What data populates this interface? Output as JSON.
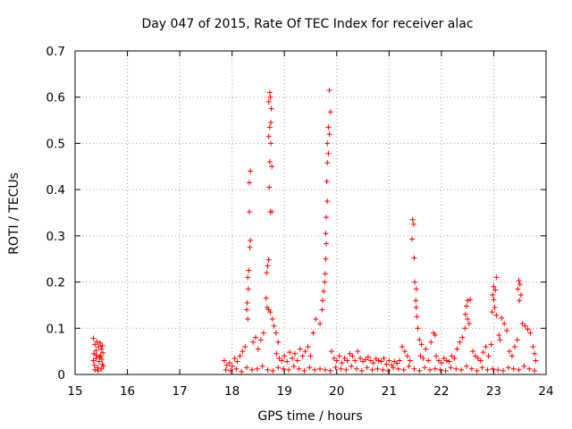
{
  "chart_data": {
    "type": "scatter",
    "title": "Day 047 of 2015, Rate Of TEC Index for receiver alac",
    "xlabel": "GPS time / hours",
    "ylabel": "ROTI / TECUs",
    "xlim": [
      15,
      24
    ],
    "ylim": [
      0,
      0.7
    ],
    "x_ticks": [
      "15",
      "16",
      "17",
      "18",
      "19",
      "20",
      "21",
      "22",
      "23",
      "24"
    ],
    "y_ticks": [
      "0",
      "0.1",
      "0.2",
      "0.3",
      "0.4",
      "0.5",
      "0.6",
      "0.7"
    ],
    "grid": true,
    "marker": "+",
    "color": "#ff0000",
    "series": [
      {
        "name": "ROTI",
        "points": [
          [
            15.35,
            0.078
          ],
          [
            15.38,
            0.065
          ],
          [
            15.4,
            0.052
          ],
          [
            15.42,
            0.071
          ],
          [
            15.45,
            0.06
          ],
          [
            15.48,
            0.068
          ],
          [
            15.5,
            0.055
          ],
          [
            15.52,
            0.062
          ],
          [
            15.35,
            0.03
          ],
          [
            15.37,
            0.02
          ],
          [
            15.4,
            0.035
          ],
          [
            15.43,
            0.015
          ],
          [
            15.46,
            0.028
          ],
          [
            15.49,
            0.04
          ],
          [
            15.52,
            0.022
          ],
          [
            15.54,
            0.018
          ],
          [
            15.36,
            0.045
          ],
          [
            15.41,
            0.042
          ],
          [
            15.47,
            0.038
          ],
          [
            15.51,
            0.033
          ],
          [
            15.38,
            0.01
          ],
          [
            15.44,
            0.008
          ],
          [
            15.5,
            0.012
          ],
          [
            15.53,
            0.047
          ],
          [
            18.35,
            0.44
          ],
          [
            18.33,
            0.415
          ],
          [
            18.33,
            0.352
          ],
          [
            18.35,
            0.29
          ],
          [
            18.34,
            0.275
          ],
          [
            18.32,
            0.225
          ],
          [
            18.3,
            0.21
          ],
          [
            18.31,
            0.185
          ],
          [
            18.29,
            0.155
          ],
          [
            18.28,
            0.14
          ],
          [
            18.3,
            0.12
          ],
          [
            18.72,
            0.61
          ],
          [
            18.73,
            0.6
          ],
          [
            18.7,
            0.59
          ],
          [
            18.75,
            0.575
          ],
          [
            18.74,
            0.545
          ],
          [
            18.72,
            0.535
          ],
          [
            18.7,
            0.515
          ],
          [
            18.74,
            0.5
          ],
          [
            18.72,
            0.46
          ],
          [
            18.76,
            0.45
          ],
          [
            18.71,
            0.405
          ],
          [
            18.73,
            0.352
          ],
          [
            18.76,
            0.352
          ],
          [
            18.7,
            0.248
          ],
          [
            18.68,
            0.235
          ],
          [
            18.66,
            0.22
          ],
          [
            18.65,
            0.165
          ],
          [
            18.67,
            0.145
          ],
          [
            18.7,
            0.14
          ],
          [
            18.73,
            0.135
          ],
          [
            18.77,
            0.12
          ],
          [
            18.8,
            0.105
          ],
          [
            18.84,
            0.09
          ],
          [
            18.88,
            0.07
          ],
          [
            19.86,
            0.615
          ],
          [
            19.88,
            0.568
          ],
          [
            19.84,
            0.535
          ],
          [
            19.86,
            0.52
          ],
          [
            19.82,
            0.5
          ],
          [
            19.84,
            0.478
          ],
          [
            19.82,
            0.458
          ],
          [
            19.81,
            0.418
          ],
          [
            19.82,
            0.375
          ],
          [
            19.8,
            0.34
          ],
          [
            19.79,
            0.305
          ],
          [
            19.8,
            0.283
          ],
          [
            19.79,
            0.25
          ],
          [
            19.78,
            0.218
          ],
          [
            19.77,
            0.2
          ],
          [
            19.75,
            0.18
          ],
          [
            19.73,
            0.16
          ],
          [
            19.72,
            0.14
          ],
          [
            19.68,
            0.11
          ],
          [
            19.6,
            0.12
          ],
          [
            19.55,
            0.09
          ],
          [
            21.45,
            0.335
          ],
          [
            21.47,
            0.325
          ],
          [
            21.44,
            0.293
          ],
          [
            21.48,
            0.252
          ],
          [
            21.49,
            0.2
          ],
          [
            21.52,
            0.185
          ],
          [
            21.51,
            0.16
          ],
          [
            21.52,
            0.145
          ],
          [
            21.53,
            0.125
          ],
          [
            21.55,
            0.1
          ],
          [
            21.58,
            0.075
          ],
          [
            21.62,
            0.065
          ],
          [
            21.7,
            0.055
          ],
          [
            21.8,
            0.07
          ],
          [
            21.85,
            0.09
          ],
          [
            21.88,
            0.085
          ],
          [
            21.25,
            0.06
          ],
          [
            21.3,
            0.05
          ],
          [
            22.5,
            0.16
          ],
          [
            22.55,
            0.162
          ],
          [
            22.48,
            0.148
          ],
          [
            22.46,
            0.13
          ],
          [
            22.5,
            0.12
          ],
          [
            22.53,
            0.11
          ],
          [
            22.45,
            0.1
          ],
          [
            22.4,
            0.08
          ],
          [
            22.35,
            0.07
          ],
          [
            22.3,
            0.055
          ],
          [
            23.05,
            0.21
          ],
          [
            23.0,
            0.19
          ],
          [
            23.03,
            0.183
          ],
          [
            22.98,
            0.172
          ],
          [
            23.0,
            0.162
          ],
          [
            23.02,
            0.145
          ],
          [
            22.97,
            0.135
          ],
          [
            23.05,
            0.128
          ],
          [
            23.15,
            0.122
          ],
          [
            23.2,
            0.11
          ],
          [
            23.25,
            0.095
          ],
          [
            23.1,
            0.085
          ],
          [
            23.12,
            0.075
          ],
          [
            22.95,
            0.065
          ],
          [
            22.85,
            0.06
          ],
          [
            22.8,
            0.048
          ],
          [
            23.48,
            0.203
          ],
          [
            23.5,
            0.195
          ],
          [
            23.46,
            0.185
          ],
          [
            23.52,
            0.172
          ],
          [
            23.49,
            0.16
          ],
          [
            23.55,
            0.11
          ],
          [
            23.6,
            0.105
          ],
          [
            23.65,
            0.098
          ],
          [
            23.7,
            0.09
          ],
          [
            23.75,
            0.06
          ],
          [
            23.78,
            0.045
          ],
          [
            23.45,
            0.075
          ],
          [
            23.4,
            0.06
          ],
          [
            17.85,
            0.03
          ],
          [
            17.9,
            0.02
          ],
          [
            17.95,
            0.025
          ],
          [
            18.0,
            0.018
          ],
          [
            18.05,
            0.035
          ],
          [
            18.1,
            0.028
          ],
          [
            18.15,
            0.04
          ],
          [
            18.2,
            0.05
          ],
          [
            18.25,
            0.06
          ],
          [
            18.4,
            0.07
          ],
          [
            18.45,
            0.08
          ],
          [
            18.5,
            0.055
          ],
          [
            18.55,
            0.075
          ],
          [
            18.6,
            0.09
          ],
          [
            18.85,
            0.045
          ],
          [
            18.9,
            0.035
          ],
          [
            18.95,
            0.03
          ],
          [
            19.0,
            0.04
          ],
          [
            19.05,
            0.028
          ],
          [
            19.1,
            0.048
          ],
          [
            19.15,
            0.035
          ],
          [
            19.2,
            0.045
          ],
          [
            19.25,
            0.03
          ],
          [
            19.3,
            0.055
          ],
          [
            19.35,
            0.04
          ],
          [
            19.4,
            0.05
          ],
          [
            19.45,
            0.06
          ],
          [
            19.5,
            0.04
          ],
          [
            19.9,
            0.05
          ],
          [
            19.95,
            0.035
          ],
          [
            20.0,
            0.03
          ],
          [
            20.05,
            0.04
          ],
          [
            20.1,
            0.025
          ],
          [
            20.15,
            0.035
          ],
          [
            20.2,
            0.03
          ],
          [
            20.25,
            0.045
          ],
          [
            20.3,
            0.04
          ],
          [
            20.35,
            0.03
          ],
          [
            20.4,
            0.05
          ],
          [
            20.45,
            0.035
          ],
          [
            20.5,
            0.028
          ],
          [
            20.55,
            0.032
          ],
          [
            20.6,
            0.038
          ],
          [
            20.65,
            0.03
          ],
          [
            20.7,
            0.025
          ],
          [
            20.75,
            0.034
          ],
          [
            20.8,
            0.03
          ],
          [
            20.85,
            0.028
          ],
          [
            20.9,
            0.035
          ],
          [
            20.95,
            0.022
          ],
          [
            21.0,
            0.03
          ],
          [
            21.05,
            0.02
          ],
          [
            21.1,
            0.028
          ],
          [
            21.15,
            0.024
          ],
          [
            21.2,
            0.03
          ],
          [
            21.35,
            0.04
          ],
          [
            21.4,
            0.03
          ],
          [
            21.6,
            0.04
          ],
          [
            21.65,
            0.035
          ],
          [
            21.75,
            0.03
          ],
          [
            21.9,
            0.04
          ],
          [
            21.95,
            0.03
          ],
          [
            22.0,
            0.025
          ],
          [
            22.05,
            0.035
          ],
          [
            22.1,
            0.03
          ],
          [
            22.15,
            0.028
          ],
          [
            22.2,
            0.04
          ],
          [
            22.25,
            0.035
          ],
          [
            22.6,
            0.05
          ],
          [
            22.65,
            0.04
          ],
          [
            22.7,
            0.035
          ],
          [
            22.75,
            0.03
          ],
          [
            22.9,
            0.04
          ],
          [
            23.3,
            0.05
          ],
          [
            23.35,
            0.04
          ],
          [
            23.8,
            0.03
          ],
          [
            17.88,
            0.01
          ],
          [
            17.97,
            0.008
          ],
          [
            18.08,
            0.012
          ],
          [
            18.18,
            0.006
          ],
          [
            18.28,
            0.015
          ],
          [
            18.38,
            0.01
          ],
          [
            18.48,
            0.012
          ],
          [
            18.58,
            0.018
          ],
          [
            18.68,
            0.01
          ],
          [
            18.78,
            0.008
          ],
          [
            18.88,
            0.015
          ],
          [
            18.98,
            0.012
          ],
          [
            19.08,
            0.01
          ],
          [
            19.18,
            0.018
          ],
          [
            19.28,
            0.012
          ],
          [
            19.38,
            0.008
          ],
          [
            19.48,
            0.015
          ],
          [
            19.58,
            0.01
          ],
          [
            19.68,
            0.012
          ],
          [
            19.78,
            0.01
          ],
          [
            19.88,
            0.008
          ],
          [
            19.98,
            0.015
          ],
          [
            20.08,
            0.012
          ],
          [
            20.18,
            0.01
          ],
          [
            20.28,
            0.018
          ],
          [
            20.38,
            0.012
          ],
          [
            20.48,
            0.008
          ],
          [
            20.58,
            0.015
          ],
          [
            20.68,
            0.01
          ],
          [
            20.78,
            0.012
          ],
          [
            20.88,
            0.01
          ],
          [
            20.98,
            0.008
          ],
          [
            21.08,
            0.015
          ],
          [
            21.18,
            0.012
          ],
          [
            21.28,
            0.01
          ],
          [
            21.38,
            0.018
          ],
          [
            21.48,
            0.012
          ],
          [
            21.58,
            0.008
          ],
          [
            21.68,
            0.015
          ],
          [
            21.78,
            0.01
          ],
          [
            21.88,
            0.012
          ],
          [
            21.98,
            0.01
          ],
          [
            22.08,
            0.008
          ],
          [
            22.18,
            0.015
          ],
          [
            22.28,
            0.012
          ],
          [
            22.38,
            0.01
          ],
          [
            22.48,
            0.018
          ],
          [
            22.58,
            0.012
          ],
          [
            22.68,
            0.008
          ],
          [
            22.78,
            0.015
          ],
          [
            22.88,
            0.01
          ],
          [
            22.98,
            0.012
          ],
          [
            23.08,
            0.01
          ],
          [
            23.18,
            0.008
          ],
          [
            23.28,
            0.015
          ],
          [
            23.38,
            0.012
          ],
          [
            23.48,
            0.01
          ],
          [
            23.58,
            0.018
          ],
          [
            23.68,
            0.012
          ],
          [
            23.78,
            0.008
          ]
        ]
      }
    ]
  }
}
